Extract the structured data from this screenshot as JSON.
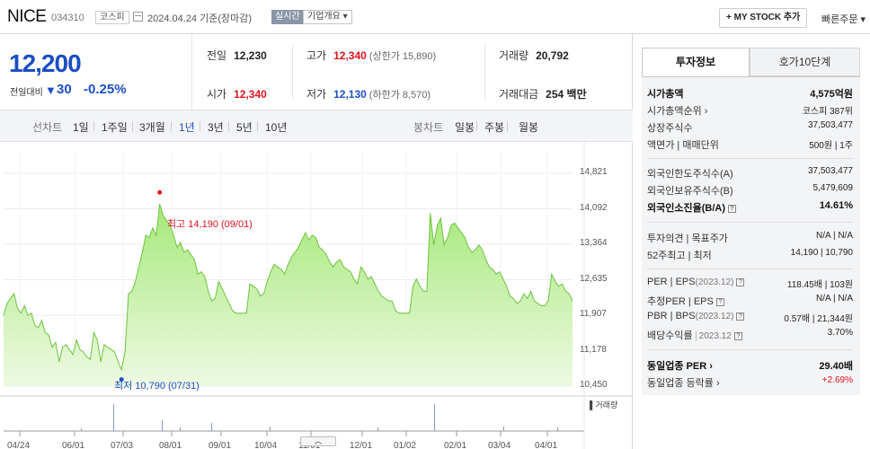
{
  "header": {
    "name": "NICE",
    "code": "034310",
    "market": "코스피",
    "date": "2024.04.24 기준(장마감)",
    "realtime": "실시간",
    "overview": "기업개요 ▾",
    "mystock": "+ MY STOCK 추가",
    "quick_order": "빠른주문 ▾"
  },
  "price": {
    "now": "12,200",
    "change_label": "전일대비",
    "arrow": "▼",
    "change": "30",
    "pct": "-0.25%"
  },
  "quote": {
    "prev_label": "전일",
    "prev": "12,230",
    "high_label": "고가",
    "high": "12,340",
    "upper_limit": "(상한가 15,890)",
    "volume_label": "거래량",
    "volume": "20,792",
    "open_label": "시가",
    "open": "12,340",
    "low_label": "저가",
    "low": "12,130",
    "lower_limit": "(하한가 8,570)",
    "amount_label": "거래대금",
    "amount": "254 백만"
  },
  "chart_tabs": {
    "line_label": "선차트",
    "line_periods": [
      "1일",
      "1주일",
      "3개월",
      "1년",
      "3년",
      "5년",
      "10년"
    ],
    "active": "1년",
    "candle_label": "봉차트",
    "candle_periods": [
      "일봉",
      "주봉",
      "월봉"
    ]
  },
  "chart_data": {
    "type": "area",
    "xlabel": "",
    "ylabel": "",
    "x_ticks": [
      "04/24",
      "06/01",
      "07/03",
      "08/01",
      "09/01",
      "10/04",
      "11/01",
      "12/01",
      "01/02",
      "02/01",
      "03/04",
      "04/01"
    ],
    "y_ticks": [
      "14,821",
      "14,092",
      "13,364",
      "12,635",
      "11,907",
      "11,178",
      "10,450"
    ],
    "ylim": [
      10450,
      14821
    ],
    "high_label": "최고 14,190 (09/01)",
    "low_label": "최저 10,790 (07/31)",
    "volume_legend": "거래량",
    "series": [
      {
        "values": [
          11900,
          12150,
          12250,
          12350,
          12050,
          11950,
          12100,
          11900,
          11950,
          11700,
          11650,
          11800,
          11550,
          11500,
          11250,
          11350,
          10950,
          11250,
          11300,
          11200,
          11100,
          11400,
          11200,
          11150,
          11050,
          11000,
          11550,
          11400,
          10950,
          11300,
          11250,
          11200,
          11150,
          10950,
          10790,
          11150,
          12350,
          12400,
          12600,
          12900,
          13200,
          13550,
          13500,
          13700,
          13550,
          14190,
          13950,
          13850,
          13750,
          13550,
          13300,
          13400,
          13200,
          13250,
          13150,
          13050,
          12750,
          12800,
          12700,
          12400,
          12200,
          12250,
          12600,
          12450,
          12300,
          12150,
          12000,
          11950,
          11950,
          11950,
          11950,
          12550,
          12500,
          12450,
          12300,
          12350,
          12600,
          12800,
          12950,
          12900,
          12850,
          12750,
          12950,
          13100,
          13200,
          13300,
          13450,
          13600,
          13450,
          13550,
          13500,
          13300,
          13250,
          13150,
          13000,
          12900,
          13000,
          13050,
          12900,
          12850,
          12800,
          12650,
          12550,
          12900,
          12800,
          12650,
          12700,
          12550,
          12400,
          12300,
          12250,
          12200,
          12200,
          12000,
          11950,
          11950,
          11950,
          11950,
          12500,
          12650,
          12500,
          12400,
          12400,
          14000,
          13350,
          13750,
          13900,
          13350,
          13500,
          13750,
          13800,
          13700,
          13600,
          13500,
          13300,
          13200,
          13250,
          13350,
          13250,
          13050,
          12900,
          12850,
          12750,
          12800,
          12650,
          12500,
          12300,
          12250,
          12150,
          12200,
          12350,
          12250,
          12400,
          12200,
          12150,
          12100,
          12100,
          12200,
          12750,
          12600,
          12500,
          12550,
          12400,
          12350,
          12200
        ]
      }
    ]
  },
  "right": {
    "tab_on": "투자정보",
    "tab_off": "호가10단계",
    "market_cap_label": "시가총액",
    "market_cap": "4,575억원",
    "cap_rank_label": "시가총액순위 ›",
    "cap_rank": "코스피 387위",
    "shares_label": "상장주식수",
    "shares": "37,503,477",
    "par_label": "액면가 | 매매단위",
    "par": "500원 | 1주",
    "foreign_limit_label": "외국인한도주식수(A)",
    "foreign_limit": "37,503,477",
    "foreign_hold_label": "외국인보유주식수(B)",
    "foreign_hold": "5,479,609",
    "foreign_ratio_label": "외국인소진율(B/A)",
    "foreign_ratio": "14.61%",
    "opinion_label": "투자의견 | 목표주가",
    "opinion": "N/A | N/A",
    "week52_label": "52주최고 | 최저",
    "week52": "14,190 | 10,790",
    "per_label": "PER | EPS",
    "per_year": "(2023.12)",
    "per": "118.45배 | 103원",
    "est_per_label": "추정PER | EPS",
    "est_per": "N/A | N/A",
    "pbr_label": "PBR | BPS",
    "pbr_year": "(2023.12)",
    "pbr": "0.57배 | 21,344원",
    "div_label": "배당수익률",
    "div_year": "2023.12",
    "div": "3.70%",
    "sector_per_label": "동일업종 PER ›",
    "sector_per": "29.40배",
    "sector_chg_label": "동일업종 등락률 ›",
    "sector_chg": "+2.69%"
  },
  "colors": {
    "up": "#e0111d",
    "down": "#1c4ec4",
    "area": "#a6e87a",
    "line": "#6cc43c"
  }
}
